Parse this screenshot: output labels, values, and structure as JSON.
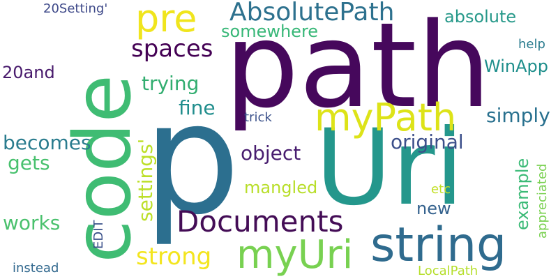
{
  "words": [
    {
      "text": "p",
      "color": "#2c6f8f",
      "orientation": "horizontal"
    },
    {
      "text": "path",
      "color": "#46085c",
      "orientation": "horizontal"
    },
    {
      "text": "Uri",
      "color": "#24978c",
      "orientation": "horizontal"
    },
    {
      "text": "code",
      "color": "#3fbc73",
      "orientation": "vertical"
    },
    {
      "text": "string",
      "color": "#2f6b8e",
      "orientation": "horizontal"
    },
    {
      "text": "myUri",
      "color": "#78d151",
      "orientation": "horizontal"
    },
    {
      "text": "myPath",
      "color": "#dde318",
      "orientation": "horizontal"
    },
    {
      "text": "pre",
      "color": "#f0e51d",
      "orientation": "horizontal"
    },
    {
      "text": "Documents",
      "color": "#440d56",
      "orientation": "horizontal"
    },
    {
      "text": "AbsolutePath",
      "color": "#2d718e",
      "orientation": "horizontal"
    },
    {
      "text": "spaces",
      "color": "#440154",
      "orientation": "horizontal"
    },
    {
      "text": "strong",
      "color": "#f3e51f",
      "orientation": "horizontal"
    },
    {
      "text": "somewhere",
      "color": "#37b777",
      "orientation": "horizontal"
    },
    {
      "text": "absolute",
      "color": "#27998a",
      "orientation": "horizontal"
    },
    {
      "text": "WinApp",
      "color": "#1f8f8c",
      "orientation": "horizontal"
    },
    {
      "text": "trying",
      "color": "#31ad6f",
      "orientation": "horizontal"
    },
    {
      "text": "fine",
      "color": "#218e8d",
      "orientation": "horizontal"
    },
    {
      "text": "simply",
      "color": "#28708e",
      "orientation": "horizontal"
    },
    {
      "text": "object",
      "color": "#481d6f",
      "orientation": "horizontal"
    },
    {
      "text": "original",
      "color": "#3c4f8a",
      "orientation": "horizontal"
    },
    {
      "text": "becomes",
      "color": "#2a7c8e",
      "orientation": "horizontal"
    },
    {
      "text": "gets",
      "color": "#48c16e",
      "orientation": "horizontal"
    },
    {
      "text": "settings'",
      "color": "#bcdf27",
      "orientation": "vertical"
    },
    {
      "text": "mangled",
      "color": "#b8de29",
      "orientation": "horizontal"
    },
    {
      "text": "works",
      "color": "#4ac16d",
      "orientation": "horizontal"
    },
    {
      "text": "new",
      "color": "#33618d",
      "orientation": "horizontal"
    },
    {
      "text": "example",
      "color": "#3aba76",
      "orientation": "vertical"
    },
    {
      "text": "20and",
      "color": "#481a6c",
      "orientation": "horizontal"
    },
    {
      "text": "20Setting'",
      "color": "#3e4989",
      "orientation": "horizontal"
    },
    {
      "text": "help",
      "color": "#297b8e",
      "orientation": "horizontal"
    },
    {
      "text": "trick",
      "color": "#3b518b",
      "orientation": "horizontal"
    },
    {
      "text": "appreciated",
      "color": "#7ad151",
      "orientation": "vertical"
    },
    {
      "text": "etc",
      "color": "#c2df23",
      "orientation": "horizontal"
    },
    {
      "text": "EDIT",
      "color": "#3b528b",
      "orientation": "vertical"
    },
    {
      "text": "instead",
      "color": "#31688e",
      "orientation": "horizontal"
    },
    {
      "text": "LocalPath",
      "color": "#b5de2b",
      "orientation": "horizontal"
    }
  ]
}
